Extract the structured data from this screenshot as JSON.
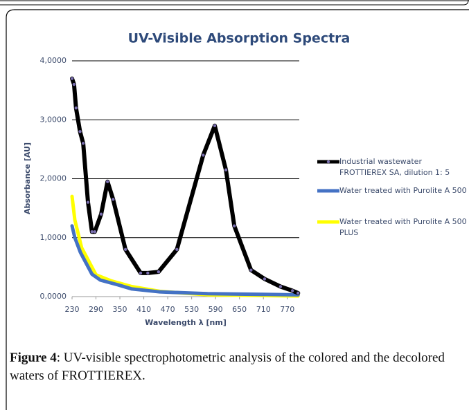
{
  "chart_data": {
    "type": "line",
    "title": "UV-Visible Absorption Spectra",
    "x_label": "Wavelength λ [nm]",
    "y_label": "Absorbance [AU]",
    "xlim": [
      230,
      800
    ],
    "xticks": [
      230,
      290,
      350,
      410,
      470,
      530,
      590,
      650,
      710,
      770
    ],
    "ylim": [
      0,
      4
    ],
    "yticks": [
      {
        "value": 0,
        "label": "0,0000"
      },
      {
        "value": 1,
        "label": "1,0000"
      },
      {
        "value": 2,
        "label": "2,0000"
      },
      {
        "value": 3,
        "label": "3,0000"
      },
      {
        "value": 4,
        "label": "4,0000"
      }
    ],
    "grid": true,
    "legend": "right",
    "series": [
      {
        "name": "Industrial wastewater FROTTIEREX SA, dilution 1: 5",
        "color": "#000000",
        "marker": true,
        "x": [
          230,
          235,
          240,
          250,
          258,
          270,
          280,
          287,
          303,
          319,
          333,
          364,
          402,
          420,
          447,
          493,
          559,
          588,
          616,
          637,
          679,
          713,
          753,
          783,
          797
        ],
        "values": [
          3.7,
          3.6,
          3.2,
          2.8,
          2.6,
          1.6,
          1.1,
          1.1,
          1.4,
          1.95,
          1.65,
          0.8,
          0.4,
          0.4,
          0.42,
          0.8,
          2.4,
          2.9,
          2.15,
          1.2,
          0.45,
          0.3,
          0.17,
          0.1,
          0.06
        ]
      },
      {
        "name": "Water treated with Purolite A 500",
        "color": "#4472c4",
        "marker": false,
        "x": [
          230,
          237,
          251,
          280,
          301,
          345,
          380,
          450,
          570,
          797
        ],
        "values": [
          1.2,
          1.0,
          0.75,
          0.38,
          0.28,
          0.2,
          0.13,
          0.08,
          0.05,
          0.03
        ]
      },
      {
        "name": "Water treated with Purolite A 500 PLUS",
        "color": "#ffff00",
        "marker": false,
        "x": [
          230,
          237,
          254,
          272,
          290,
          327,
          380,
          450,
          570,
          797
        ],
        "values": [
          1.7,
          1.3,
          0.83,
          0.6,
          0.37,
          0.27,
          0.17,
          0.09,
          0.03,
          0.01
        ]
      }
    ]
  },
  "caption": {
    "label": "Figure 4",
    "text": ": UV-visible spectrophotometric analysis of the colored and the decolored waters of FROTTIEREX."
  }
}
